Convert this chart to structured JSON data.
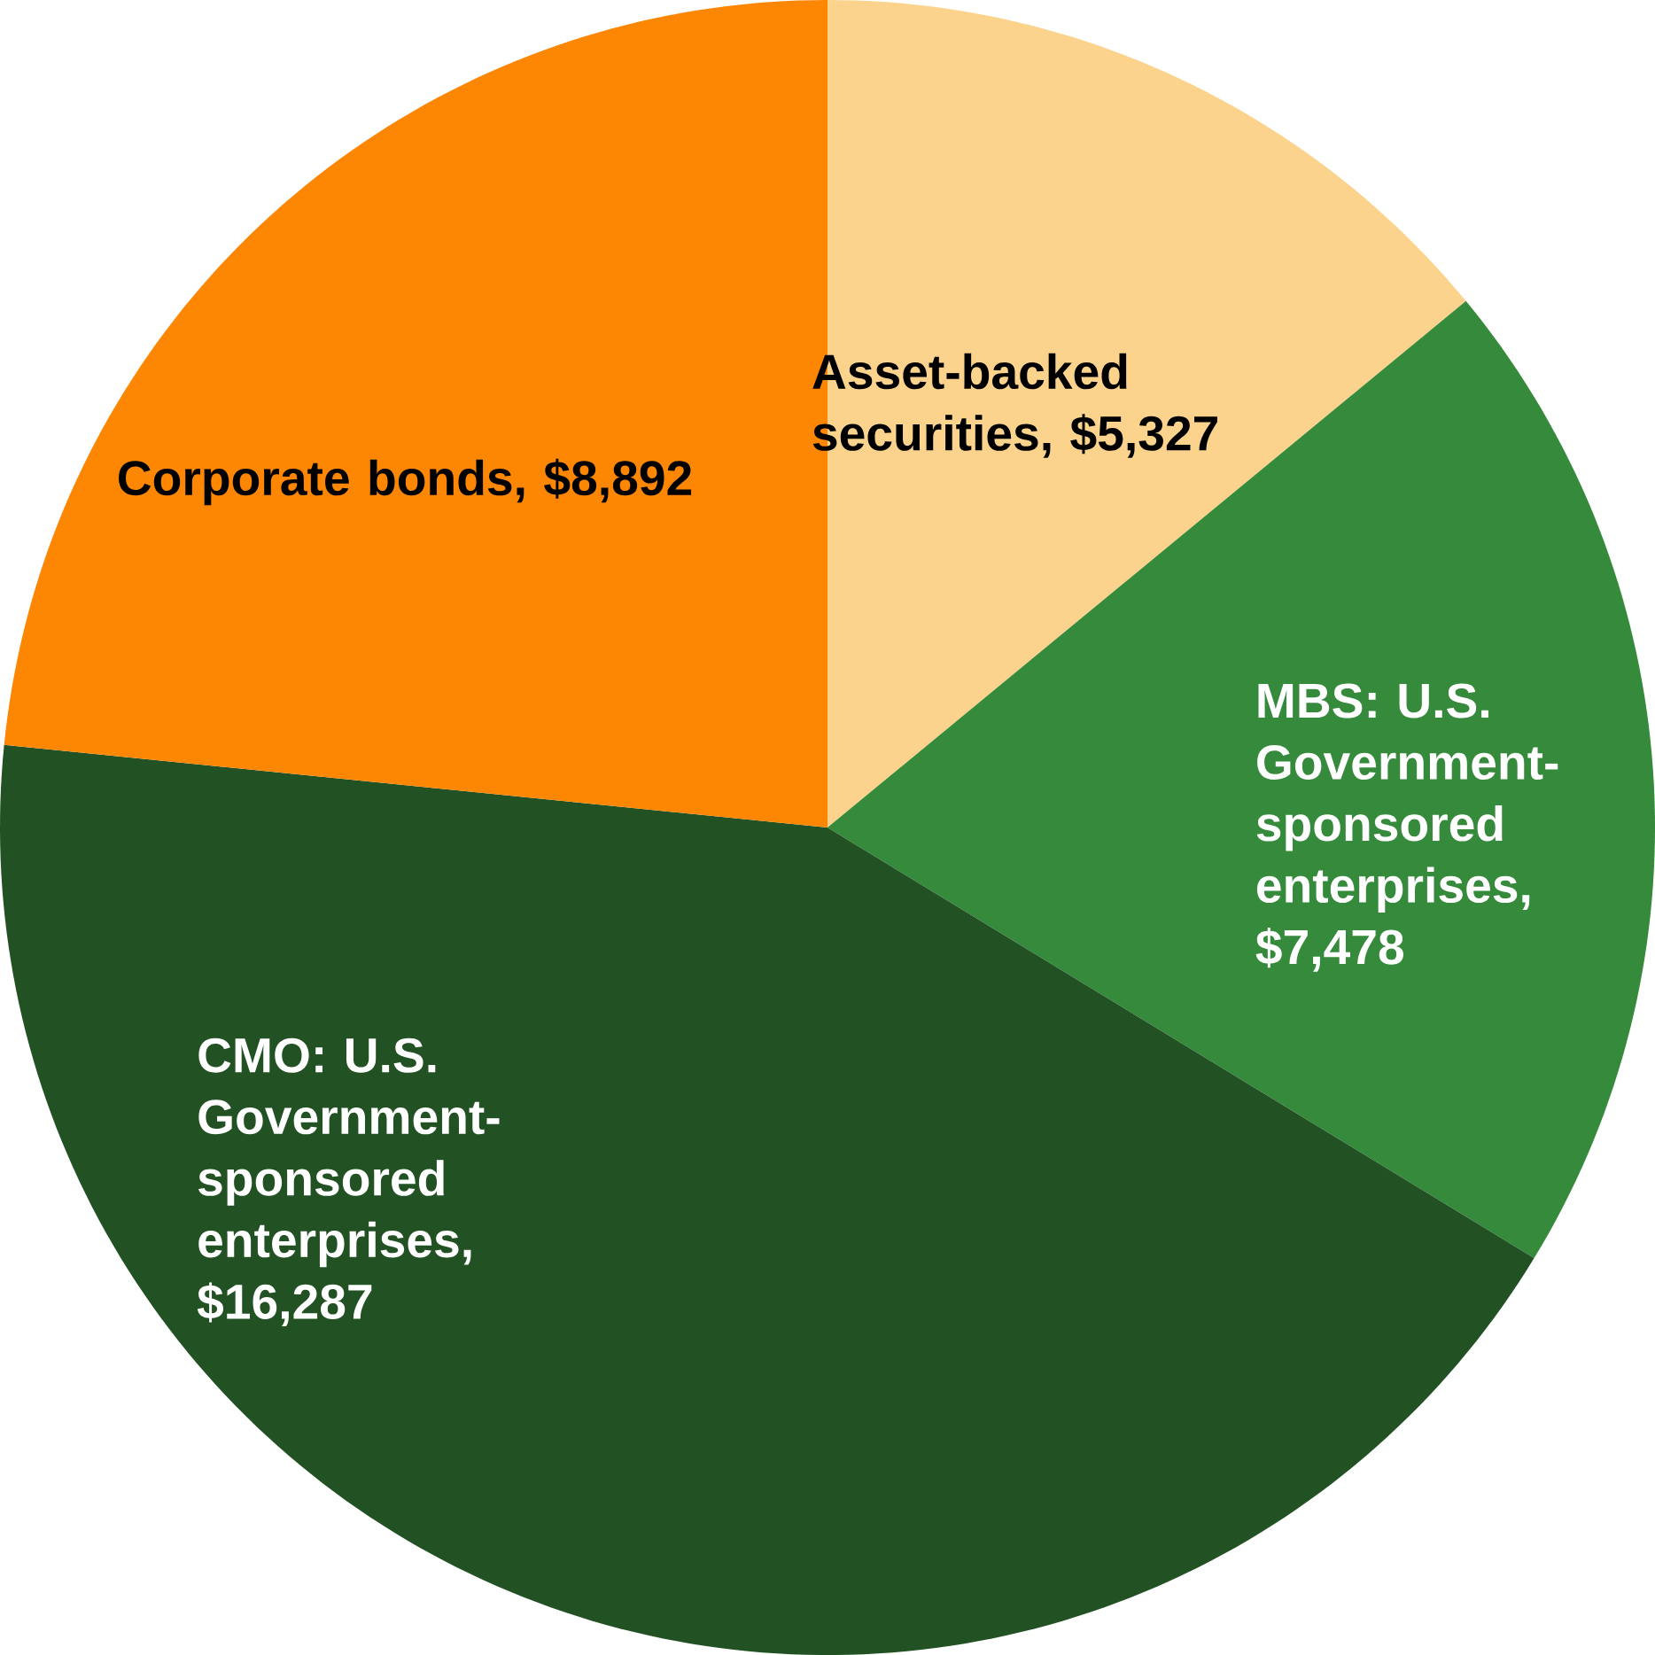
{
  "chart_data": {
    "type": "pie",
    "categories": [
      "Asset-backed securities, $5,327",
      "MBS: U.S. Government-sponsored enterprises, $7,478",
      "CMO: U.S. Government-sponsored enterprises, $16,287",
      "Corporate bonds, $8,892"
    ],
    "values": [
      5327,
      7478,
      16287,
      8892
    ],
    "colors": [
      "#fbd38d",
      "#368a3b",
      "#225224",
      "#fd8603"
    ]
  }
}
